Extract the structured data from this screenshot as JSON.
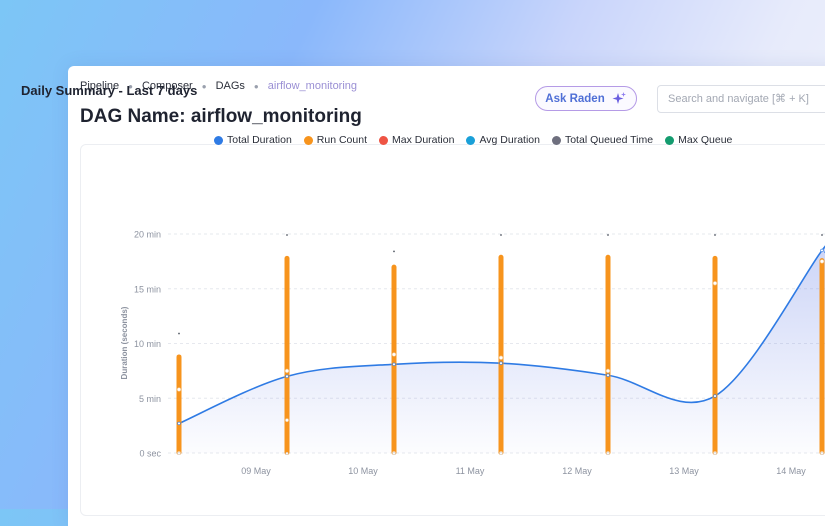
{
  "breadcrumb": [
    "Pipeline",
    "Composer",
    "DAGs",
    "airflow_monitoring"
  ],
  "page_title": "DAG Name: airflow_monitoring",
  "ask_button": {
    "label": "Ask Raden",
    "icon": "sparkle-icon"
  },
  "search": {
    "placeholder": "Search and navigate [⌘ + K]"
  },
  "card_title": "Daily Summary - Last 7 days",
  "colors": {
    "total_duration": "#2f7be4",
    "run_count": "#f7941d",
    "max_duration": "#ee5444",
    "avg_duration": "#1aa0d8",
    "total_queued_time": "#6e6f7e",
    "max_queue": "#149c6f"
  },
  "chart_data": {
    "type": "line",
    "title": "Daily Summary - Last 7 days",
    "ylabel": "Duration (seconds)",
    "xlabel": "",
    "y_ticks": [
      "0 sec",
      "5 min",
      "10 min",
      "15 min",
      "20 min"
    ],
    "ylim": [
      0,
      20
    ],
    "x_ticks": [
      "09 May",
      "10 May",
      "11 May",
      "12 May",
      "13 May",
      "14 May"
    ],
    "x": [
      8.5,
      9,
      10,
      11,
      12,
      13,
      14
    ],
    "grid": true,
    "legend_position": "top",
    "legend": [
      "Total Duration",
      "Run Count",
      "Max Duration",
      "Avg Duration",
      "Total Queued Time",
      "Max Queue"
    ],
    "series": [
      {
        "name": "Total Duration",
        "type": "area-line",
        "values": [
          2.7,
          7.0,
          8.1,
          8.2,
          7.1,
          5.2,
          18.5
        ]
      },
      {
        "name": "Run Count",
        "type": "bar",
        "values": [
          9,
          18,
          17.2,
          18.1,
          18.1,
          18,
          17.8
        ]
      },
      {
        "name": "Max Duration",
        "type": "marker",
        "values": [
          11,
          20,
          18.5,
          20,
          20,
          20,
          20
        ]
      },
      {
        "name": "Avg Duration",
        "type": "marker",
        "values": [
          5.8,
          7.5,
          9,
          8.7,
          7.5,
          15.5,
          17.5
        ]
      },
      {
        "name": "Total Queued Time",
        "type": "marker",
        "values": [
          0,
          3,
          0,
          0,
          0,
          0,
          0
        ]
      },
      {
        "name": "Max Queue",
        "type": "marker",
        "values": [
          0,
          0,
          0,
          0,
          0,
          0,
          0
        ]
      }
    ]
  }
}
